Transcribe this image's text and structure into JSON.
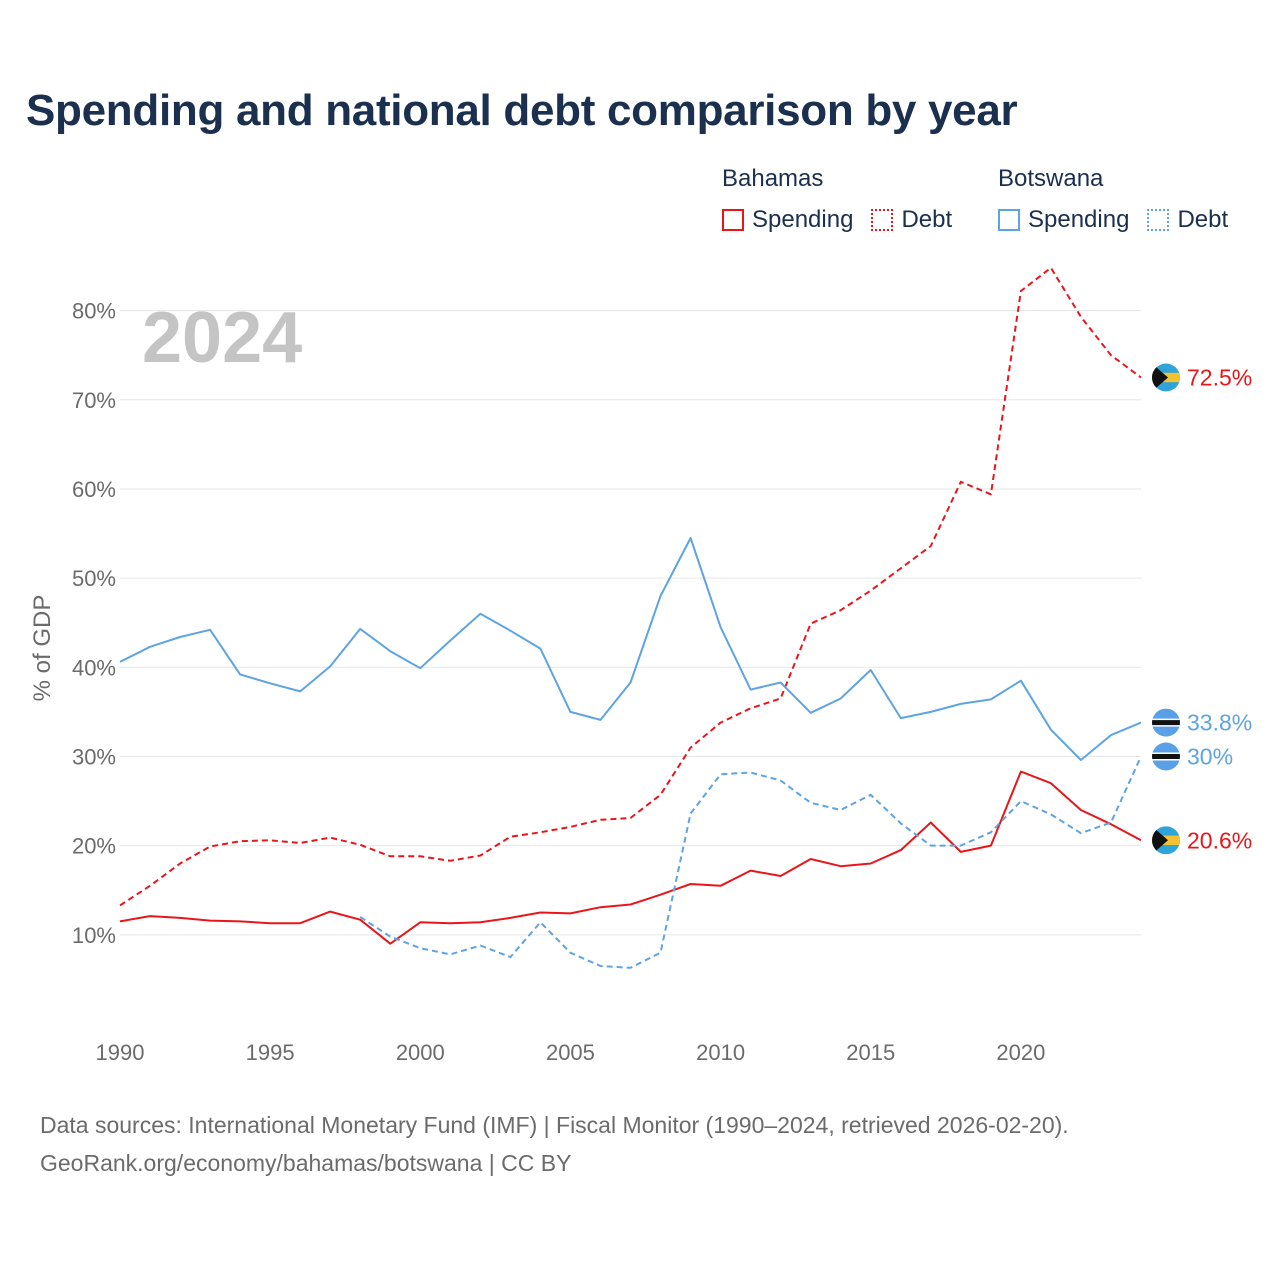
{
  "title": "Spending and national debt comparison by year",
  "year_watermark": "2024",
  "legend": {
    "groups": [
      {
        "name": "Bahamas",
        "color": "#e8161b",
        "items": [
          "Spending",
          "Debt"
        ]
      },
      {
        "name": "Botswana",
        "color": "#5ea4e3",
        "items": [
          "Spending",
          "Debt"
        ]
      }
    ]
  },
  "source": {
    "line1": "Data sources: International Monetary Fund (IMF) | Fiscal Monitor (1990–2024, retrieved 2026-02-20).",
    "line2": "GeoRank.org/economy/bahamas/botswana | CC BY"
  },
  "chart_data": {
    "type": "line",
    "ylabel": "% of GDP",
    "xlabel": "",
    "xlim": [
      1990,
      2024
    ],
    "ylim": [
      0,
      85
    ],
    "x_ticks": [
      "1990",
      "1995",
      "2000",
      "2005",
      "2010",
      "2015",
      "2020"
    ],
    "y_ticks": [
      "10%",
      "20%",
      "30%",
      "40%",
      "50%",
      "60%",
      "70%",
      "80%"
    ],
    "y_tick_values": [
      10,
      20,
      30,
      40,
      50,
      60,
      70,
      80
    ],
    "series": [
      {
        "name": "Bahamas Spending",
        "country": "Bahamas",
        "kind": "Spending",
        "color": "#e8161b",
        "dash": false,
        "end_label": "20.6%",
        "flag": "bahamas",
        "x": [
          1990,
          1991,
          1992,
          1993,
          1994,
          1995,
          1996,
          1997,
          1998,
          1999,
          2000,
          2001,
          2002,
          2003,
          2004,
          2005,
          2006,
          2007,
          2008,
          2009,
          2010,
          2011,
          2012,
          2013,
          2014,
          2015,
          2016,
          2017,
          2018,
          2019,
          2020,
          2021,
          2022,
          2023,
          2024
        ],
        "values": [
          11.5,
          12.1,
          11.9,
          11.6,
          11.5,
          11.3,
          11.3,
          12.6,
          11.7,
          9.0,
          11.4,
          11.3,
          11.4,
          11.9,
          12.5,
          12.4,
          13.1,
          13.4,
          14.5,
          15.7,
          15.5,
          17.2,
          16.6,
          18.5,
          17.7,
          18.0,
          19.5,
          22.6,
          19.3,
          20.0,
          28.3,
          27.0,
          24.0,
          22.4,
          20.6
        ]
      },
      {
        "name": "Bahamas Debt",
        "country": "Bahamas",
        "kind": "Debt",
        "color": "#e8161b",
        "dash": true,
        "end_label": "72.5%",
        "flag": "bahamas",
        "x": [
          1990,
          1991,
          1992,
          1993,
          1994,
          1995,
          1996,
          1997,
          1998,
          1999,
          2000,
          2001,
          2002,
          2003,
          2004,
          2005,
          2006,
          2007,
          2008,
          2009,
          2010,
          2011,
          2012,
          2013,
          2014,
          2015,
          2016,
          2017,
          2018,
          2019,
          2020,
          2021,
          2022,
          2023,
          2024
        ],
        "values": [
          13.3,
          15.5,
          18.0,
          19.9,
          20.5,
          20.6,
          20.3,
          20.9,
          20.1,
          18.8,
          18.8,
          18.3,
          18.9,
          21.0,
          21.5,
          22.1,
          22.9,
          23.1,
          25.7,
          31.0,
          33.8,
          35.4,
          36.5,
          44.9,
          46.4,
          48.6,
          51.1,
          53.6,
          60.8,
          59.4,
          82.2,
          84.8,
          79.3,
          75.0,
          72.5
        ]
      },
      {
        "name": "Botswana Spending",
        "country": "Botswana",
        "kind": "Spending",
        "color": "#5ea4e3",
        "dash": false,
        "end_label": "33.8%",
        "flag": "botswana",
        "x": [
          1990,
          1991,
          1992,
          1993,
          1994,
          1995,
          1996,
          1997,
          1998,
          1999,
          2000,
          2001,
          2002,
          2003,
          2004,
          2005,
          2006,
          2007,
          2008,
          2009,
          2010,
          2011,
          2012,
          2013,
          2014,
          2015,
          2016,
          2017,
          2018,
          2019,
          2020,
          2021,
          2022,
          2023,
          2024
        ],
        "values": [
          40.6,
          42.3,
          43.4,
          44.2,
          39.2,
          38.2,
          37.3,
          40.1,
          44.3,
          41.8,
          39.9,
          43.0,
          46.0,
          44.1,
          42.1,
          35.0,
          34.1,
          38.3,
          48.0,
          54.5,
          44.5,
          37.5,
          38.3,
          34.9,
          36.5,
          39.7,
          34.3,
          35.0,
          35.9,
          36.4,
          38.5,
          33.0,
          29.6,
          32.4,
          33.8
        ]
      },
      {
        "name": "Botswana Debt",
        "country": "Botswana",
        "kind": "Debt",
        "color": "#5ea4e3",
        "dash": true,
        "end_label": "30%",
        "flag": "botswana",
        "x": [
          1998,
          1999,
          2000,
          2001,
          2002,
          2003,
          2004,
          2005,
          2006,
          2007,
          2008,
          2009,
          2010,
          2011,
          2012,
          2013,
          2014,
          2015,
          2016,
          2017,
          2018,
          2019,
          2020,
          2021,
          2022,
          2023,
          2024
        ],
        "values": [
          12.0,
          9.8,
          8.5,
          7.8,
          8.8,
          7.5,
          11.4,
          8.0,
          6.5,
          6.3,
          8.0,
          23.6,
          28.0,
          28.2,
          27.3,
          24.8,
          24.0,
          25.7,
          22.5,
          20.0,
          20.0,
          21.5,
          25.0,
          23.5,
          21.4,
          22.6,
          30.0
        ]
      }
    ]
  }
}
